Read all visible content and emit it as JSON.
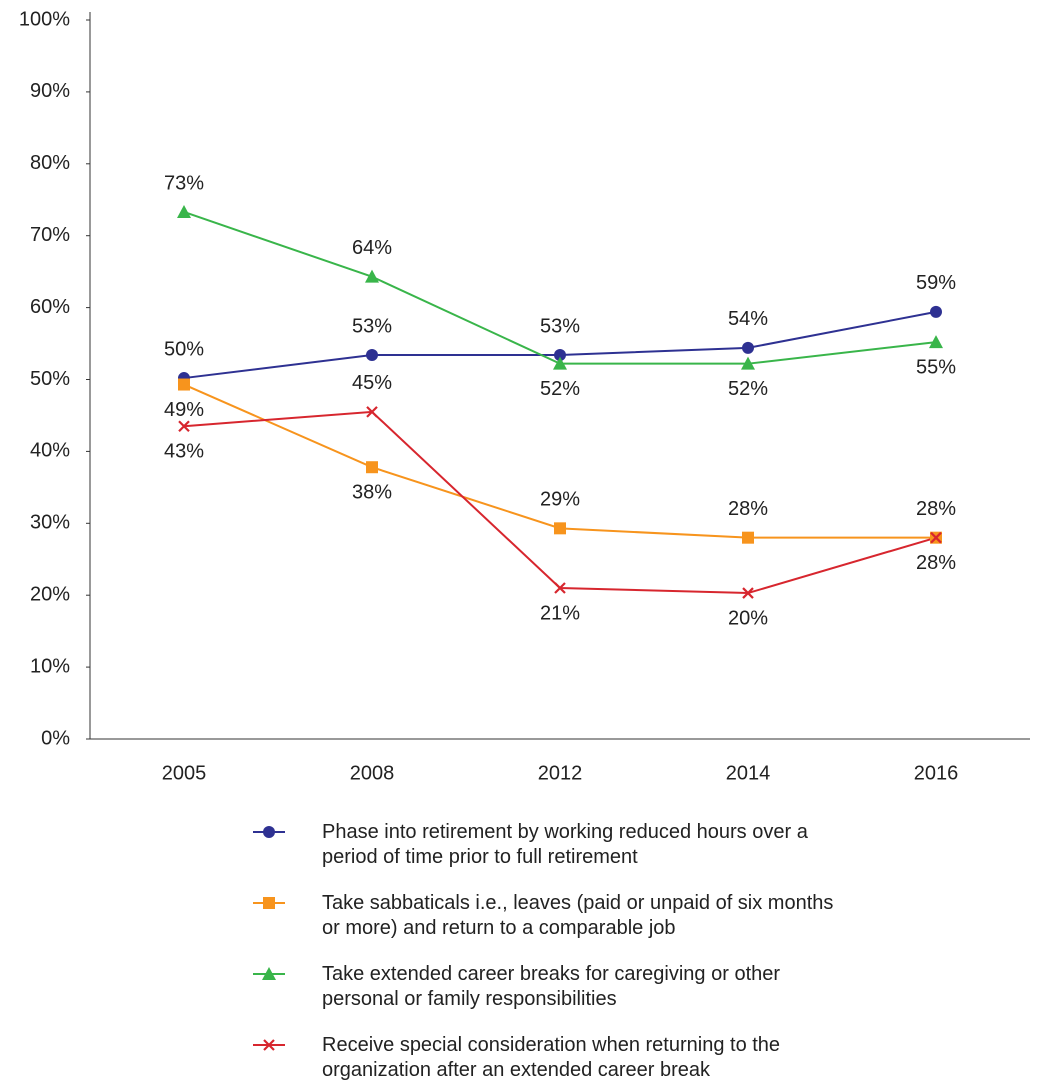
{
  "chart_data": {
    "type": "line",
    "categories": [
      "2005",
      "2008",
      "2012",
      "2014",
      "2016"
    ],
    "ylim": [
      0,
      100
    ],
    "yticks": [
      {
        "value": 0,
        "label": "0%"
      },
      {
        "value": 10,
        "label": "10%"
      },
      {
        "value": 20,
        "label": "20%"
      },
      {
        "value": 30,
        "label": "30%"
      },
      {
        "value": 40,
        "label": "40%"
      },
      {
        "value": 50,
        "label": "50%"
      },
      {
        "value": 60,
        "label": "60%"
      },
      {
        "value": 70,
        "label": "70%"
      },
      {
        "value": 80,
        "label": "80%"
      },
      {
        "value": 90,
        "label": "90%"
      },
      {
        "value": 100,
        "label": "100%"
      }
    ],
    "grid": false,
    "series": [
      {
        "name": "Phase into retirement by working reduced hours over a period of time prior to full retirement",
        "color": "#2e3192",
        "marker": "circle",
        "values": [
          50.2,
          53.4,
          53.4,
          54.4,
          59.4
        ],
        "value_labels": [
          "50%",
          "53%",
          "53%",
          "54%",
          "59%"
        ]
      },
      {
        "name": "Take sabbaticals i.e., leaves (paid or unpaid of six months or more) and return to a comparable job",
        "color": "#f7941d",
        "marker": "square",
        "values": [
          49.3,
          37.8,
          29.3,
          28,
          28
        ],
        "value_labels": [
          "49%",
          "38%",
          "29%",
          "28%",
          "28%"
        ]
      },
      {
        "name": "Take extended career breaks for caregiving or other personal or family responsibilities",
        "color": "#39b54a",
        "marker": "triangle",
        "values": [
          73.3,
          64.3,
          52.2,
          52.2,
          55.2
        ],
        "value_labels": [
          "73%",
          "64%",
          "52%",
          "52%",
          "55%"
        ]
      },
      {
        "name": "Receive special consideration when returning to the organization after an extended career break",
        "color": "#d7262e",
        "marker": "x",
        "values": [
          43.5,
          45.5,
          21,
          20.3,
          28
        ],
        "value_labels": [
          "43%",
          "45%",
          "21%",
          "20%",
          "28%"
        ]
      }
    ]
  }
}
